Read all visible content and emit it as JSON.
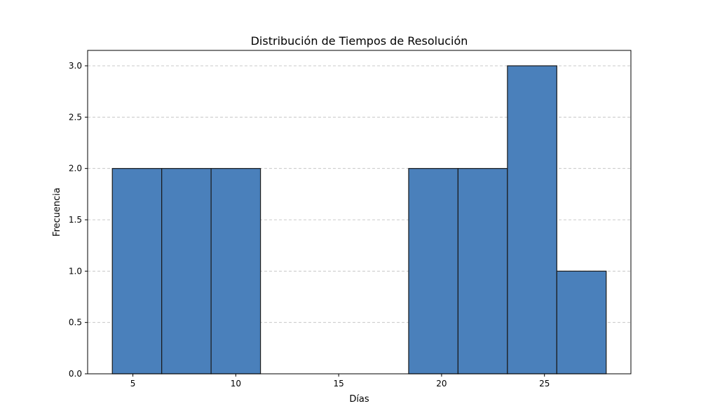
{
  "chart_data": {
    "type": "bar",
    "title": "Distribución de Tiempos de Resolución",
    "xlabel": "Días",
    "ylabel": "Frecuencia",
    "bins": [
      {
        "x0": 4.0,
        "x1": 6.4,
        "count": 2
      },
      {
        "x0": 6.4,
        "x1": 8.8,
        "count": 2
      },
      {
        "x0": 8.8,
        "x1": 11.2,
        "count": 2
      },
      {
        "x0": 11.2,
        "x1": 13.6,
        "count": 0
      },
      {
        "x0": 13.6,
        "x1": 16.0,
        "count": 0
      },
      {
        "x0": 16.0,
        "x1": 18.4,
        "count": 0
      },
      {
        "x0": 18.4,
        "x1": 20.8,
        "count": 2
      },
      {
        "x0": 20.8,
        "x1": 23.2,
        "count": 2
      },
      {
        "x0": 23.2,
        "x1": 25.6,
        "count": 3
      },
      {
        "x0": 25.6,
        "x1": 28.0,
        "count": 1
      }
    ],
    "xlim": [
      2.8,
      29.2
    ],
    "ylim": [
      0,
      3.15
    ],
    "xticks": [
      "5",
      "10",
      "15",
      "20",
      "25"
    ],
    "yticks": [
      "0.0",
      "0.5",
      "1.0",
      "1.5",
      "2.0",
      "2.5",
      "3.0"
    ],
    "grid": "y-dashed",
    "bar_color": "#4a80bb",
    "edge_color": "#1a1a1a",
    "grid_color": "#c8c8c8"
  }
}
